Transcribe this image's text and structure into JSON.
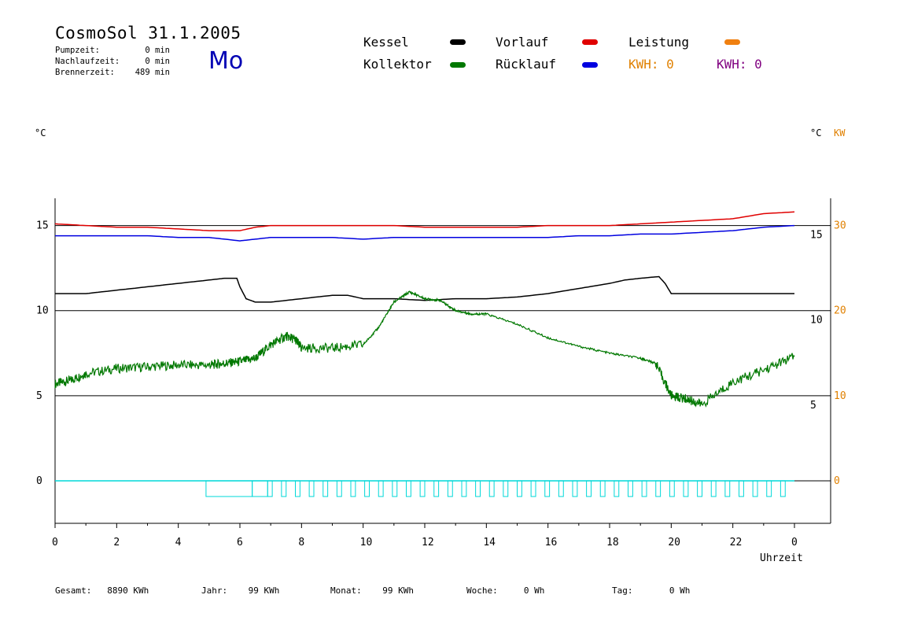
{
  "header": {
    "title": "CosmoSol 31.1.2005",
    "day": "Mo",
    "stats": [
      {
        "label": "Pumpzeit:",
        "value": "0 min"
      },
      {
        "label": "Nachlaufzeit:",
        "value": "0 min"
      },
      {
        "label": "Brennerzeit:",
        "value": "489 min"
      }
    ]
  },
  "legend": {
    "kessel": {
      "label": "Kessel",
      "color": "#000000"
    },
    "vorlauf": {
      "label": "Vorlauf",
      "color": "#e00000"
    },
    "leistung": {
      "label": "Leistung",
      "color": "#f08010"
    },
    "kollektor": {
      "label": "Kollektor",
      "color": "#007800"
    },
    "ruecklauf": {
      "label": "Rücklauf",
      "color": "#0000e0"
    },
    "kwh1": {
      "label": "KWH: 0",
      "color": "#e08000"
    },
    "kwh2": {
      "label": "KWH: 0",
      "color": "#800080"
    }
  },
  "units": {
    "left": "°C",
    "right": "°C",
    "right_kw": "KW"
  },
  "footer": [
    {
      "label": "Gesamt:",
      "value": "8890 KWh"
    },
    {
      "label": "Jahr:",
      "value": "99 KWh"
    },
    {
      "label": "Monat:",
      "value": "99 KWh"
    },
    {
      "label": "Woche:",
      "value": "0 Wh"
    },
    {
      "label": "Tag:",
      "value": "0 Wh"
    }
  ],
  "chart_data": {
    "type": "line",
    "xlabel": "Uhrzeit",
    "x_ticks": [
      "0",
      "2",
      "4",
      "6",
      "8",
      "10",
      "12",
      "14",
      "16",
      "18",
      "20",
      "22",
      "0"
    ],
    "xlim": [
      0,
      24
    ],
    "left_axis": {
      "ylim": [
        -2.5,
        16.6
      ],
      "ticks": [
        0,
        5,
        10,
        15
      ]
    },
    "right_axis_c": {
      "ticks": [
        5,
        10,
        15
      ]
    },
    "right_axis_kw": {
      "ticks": [
        0,
        10,
        20,
        30
      ],
      "color": "#e08000"
    },
    "grid": "horizontal at 0, 5, 10, 15",
    "series": [
      {
        "name": "Vorlauf",
        "color": "#e00000",
        "x": [
          0,
          1,
          2,
          3,
          4,
          5,
          6,
          6.5,
          7,
          8,
          9,
          10,
          11,
          12,
          13,
          14,
          15,
          16,
          17,
          18,
          19,
          20,
          21,
          22,
          23,
          24
        ],
        "y": [
          15.1,
          15.0,
          14.9,
          14.9,
          14.8,
          14.7,
          14.7,
          14.9,
          15.0,
          15.0,
          15.0,
          15.0,
          15.0,
          14.9,
          14.9,
          14.9,
          14.9,
          15.0,
          15.0,
          15.0,
          15.1,
          15.2,
          15.3,
          15.4,
          15.7,
          15.8
        ]
      },
      {
        "name": "Rücklauf",
        "color": "#0000e0",
        "x": [
          0,
          1,
          2,
          3,
          4,
          5,
          6,
          6.5,
          7,
          8,
          9,
          10,
          11,
          12,
          13,
          14,
          15,
          16,
          17,
          18,
          19,
          20,
          21,
          22,
          23,
          24
        ],
        "y": [
          14.4,
          14.4,
          14.4,
          14.4,
          14.3,
          14.3,
          14.1,
          14.2,
          14.3,
          14.3,
          14.3,
          14.2,
          14.3,
          14.3,
          14.3,
          14.3,
          14.3,
          14.3,
          14.4,
          14.4,
          14.5,
          14.5,
          14.6,
          14.7,
          14.9,
          15.0
        ]
      },
      {
        "name": "Kessel",
        "color": "#000000",
        "x": [
          0,
          1,
          2,
          3,
          4,
          5,
          5.5,
          5.9,
          6.0,
          6.2,
          6.5,
          7,
          8,
          9,
          9.5,
          10,
          11,
          12,
          13,
          14,
          15,
          16,
          17,
          18,
          18.5,
          19,
          19.6,
          19.8,
          20,
          21,
          22,
          23,
          24
        ],
        "y": [
          11.0,
          11.0,
          11.2,
          11.4,
          11.6,
          11.8,
          11.9,
          11.9,
          11.4,
          10.7,
          10.5,
          10.5,
          10.7,
          10.9,
          10.9,
          10.7,
          10.7,
          10.6,
          10.7,
          10.7,
          10.8,
          11.0,
          11.3,
          11.6,
          11.8,
          11.9,
          12.0,
          11.6,
          11.0,
          11.0,
          11.0,
          11.0,
          11.0
        ]
      },
      {
        "name": "Kollektor",
        "color": "#007800",
        "x": [
          0,
          0.5,
          1,
          2,
          3,
          4,
          5,
          5.5,
          6,
          6.5,
          7,
          7.5,
          7.8,
          8,
          9,
          10,
          10.5,
          11,
          11.5,
          12,
          12.5,
          13,
          13.5,
          14,
          15,
          16,
          17,
          18,
          19,
          19.5,
          20,
          20.5,
          21,
          22,
          23,
          24
        ],
        "y": [
          5.7,
          5.9,
          6.3,
          6.6,
          6.7,
          6.8,
          6.8,
          6.9,
          7.0,
          7.2,
          8.0,
          8.5,
          8.3,
          7.8,
          7.8,
          8.0,
          9.0,
          10.5,
          11.1,
          10.7,
          10.6,
          10.0,
          9.8,
          9.8,
          9.2,
          8.4,
          7.9,
          7.5,
          7.2,
          6.9,
          5.0,
          4.8,
          4.5,
          5.8,
          6.5,
          7.3
        ]
      }
    ],
    "pump_periods": [
      [
        4.9,
        6.4
      ],
      [
        6.4,
        6.9
      ],
      [
        6.9,
        23.6
      ]
    ]
  }
}
